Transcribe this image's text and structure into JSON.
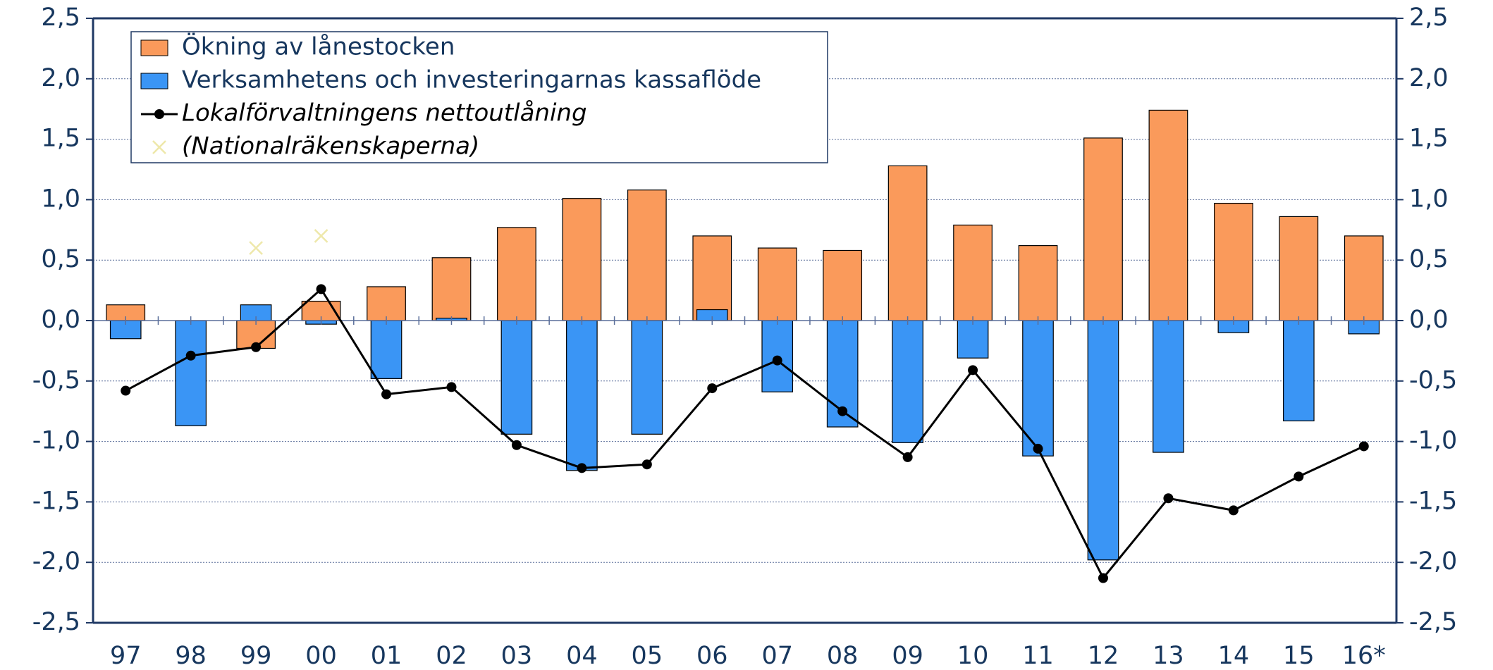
{
  "chart_data": {
    "type": "bar",
    "categories": [
      "97",
      "98",
      "99",
      "00",
      "01",
      "02",
      "03",
      "04",
      "05",
      "06",
      "07",
      "08",
      "09",
      "10",
      "11",
      "12",
      "13",
      "14",
      "15",
      "16*"
    ],
    "series": [
      {
        "name": "Ökning av lånestocken",
        "type": "bar",
        "color": "#fa9a5b",
        "values": [
          0.13,
          0.0,
          -0.23,
          0.16,
          0.28,
          0.52,
          0.77,
          1.01,
          1.08,
          0.7,
          0.6,
          0.58,
          1.28,
          0.79,
          0.62,
          1.51,
          1.74,
          0.97,
          0.86,
          0.7
        ]
      },
      {
        "name": "Verksamhetens och investeringarnas kassaflöde",
        "type": "bar",
        "color": "#3a95f5",
        "values": [
          -0.15,
          -0.87,
          0.13,
          -0.03,
          -0.48,
          0.02,
          -0.94,
          -1.24,
          -0.94,
          0.09,
          -0.59,
          -0.88,
          -1.01,
          -0.31,
          -1.12,
          -1.98,
          -1.09,
          -0.1,
          -0.83,
          -0.11
        ]
      },
      {
        "name": "Lokalförvaltningens nettoutlåning",
        "type": "line",
        "color": "#000000",
        "values": [
          -0.58,
          -0.29,
          -0.22,
          0.26,
          -0.61,
          -0.55,
          -1.03,
          -1.22,
          -1.19,
          -0.56,
          -0.33,
          -0.75,
          -1.13,
          -0.41,
          -1.06,
          -2.13,
          -1.47,
          -1.57,
          -1.29,
          -1.04
        ]
      },
      {
        "name": "(Nationalräkenskaperna)",
        "type": "scatter",
        "color": "#eee8aa",
        "values": [
          null,
          null,
          0.6,
          0.7,
          null,
          null,
          null,
          null,
          null,
          null,
          null,
          null,
          null,
          null,
          null,
          null,
          null,
          null,
          null,
          null
        ]
      }
    ],
    "ylim": [
      -2.5,
      2.5
    ],
    "yticks": [
      {
        "value": -2.5,
        "label": "-2,5"
      },
      {
        "value": -2.0,
        "label": "-2,0"
      },
      {
        "value": -1.5,
        "label": "-1,5"
      },
      {
        "value": -1.0,
        "label": "-1,0"
      },
      {
        "value": -0.5,
        "label": "-0,5"
      },
      {
        "value": 0,
        "label": "0,0"
      },
      {
        "value": 0.5,
        "label": "0,5"
      },
      {
        "value": 1.0,
        "label": "1,0"
      },
      {
        "value": 1.5,
        "label": "1,5"
      },
      {
        "value": 2.0,
        "label": "2,0"
      },
      {
        "value": 2.5,
        "label": "2,5"
      }
    ],
    "y2lim": [
      -2.5,
      2.5
    ],
    "y2ticks": [
      {
        "value": -2.5,
        "label": "-2,5"
      },
      {
        "value": -2.0,
        "label": "-2,0"
      },
      {
        "value": -1.5,
        "label": "-1,5"
      },
      {
        "value": -1.0,
        "label": "-1,0"
      },
      {
        "value": -0.5,
        "label": "-0,5"
      },
      {
        "value": 0,
        "label": "0,0"
      },
      {
        "value": 0.5,
        "label": "0,5"
      },
      {
        "value": 1.0,
        "label": "1,0"
      },
      {
        "value": 1.5,
        "label": "1,5"
      },
      {
        "value": 2.0,
        "label": "2,0"
      },
      {
        "value": 2.5,
        "label": "2,5"
      }
    ],
    "grid": true,
    "legend": "upper left"
  }
}
